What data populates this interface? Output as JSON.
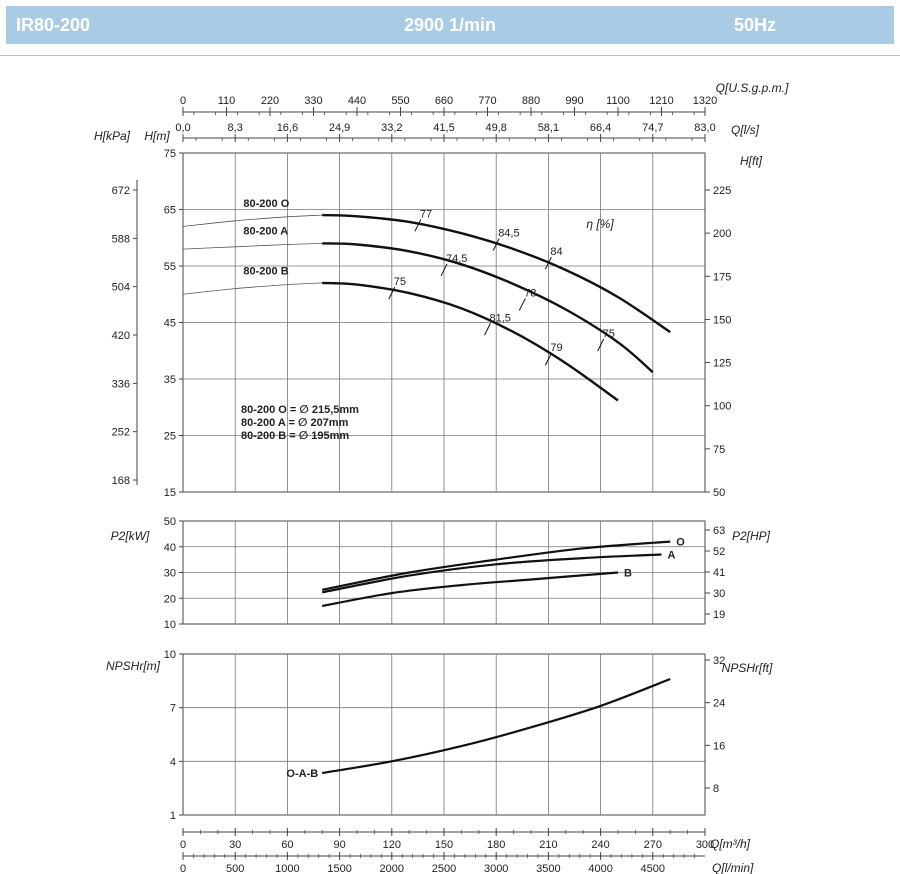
{
  "header": {
    "model": "IR80-200",
    "speed": "2900 1/min",
    "frequency": "50Hz"
  },
  "chart_data": [
    {
      "type": "line",
      "id": "head",
      "xlim": [
        0,
        300
      ],
      "ylim": [
        15,
        75
      ],
      "y_ticks": [
        15,
        25,
        35,
        45,
        55,
        65,
        75
      ],
      "ylabel": "H[m]",
      "ylabel_left2": "H[kPa]",
      "y2_ticks": [
        168,
        252,
        336,
        420,
        504,
        588,
        672
      ],
      "ylabel_right": "H[ft]",
      "yr_ticks": [
        50,
        75,
        100,
        125,
        150,
        175,
        200,
        225
      ],
      "top_axis_1": {
        "label": "Q[U.S.g.p.m.]",
        "ticks": [
          "0",
          "110",
          "220",
          "330",
          "440",
          "550",
          "660",
          "770",
          "880",
          "990",
          "1100",
          "1210",
          "1320"
        ]
      },
      "top_axis_2": {
        "label": "Q[l/s]",
        "ticks": [
          "0,0",
          "8,3",
          "16,6",
          "24,9",
          "33,2",
          "41,5",
          "49,8",
          "58,1",
          "66,4",
          "74,7",
          "83,0"
        ]
      },
      "efficiency_label": "η [%]",
      "series": [
        {
          "name": "80-200 O",
          "x": [
            80,
            100,
            130,
            160,
            190,
            220,
            250,
            280
          ],
          "y": [
            64,
            63.8,
            62.8,
            60.8,
            58,
            54.3,
            49.5,
            43.3
          ],
          "extension": {
            "x": [
              0,
              30,
              60,
              80
            ],
            "y": [
              62.0,
              63.0,
              63.7,
              64.0
            ]
          }
        },
        {
          "name": "80-200 A",
          "x": [
            80,
            100,
            130,
            160,
            190,
            220,
            250,
            270
          ],
          "y": [
            59,
            58.8,
            57.6,
            55.3,
            51.8,
            47.3,
            41.5,
            36.2
          ],
          "extension": {
            "x": [
              0,
              30,
              60,
              80
            ],
            "y": [
              58.0,
              58.4,
              58.8,
              59.0
            ]
          }
        },
        {
          "name": "80-200 B",
          "x": [
            80,
            100,
            130,
            160,
            190,
            220,
            250
          ],
          "y": [
            52,
            51.7,
            50.2,
            47.5,
            43.3,
            37.8,
            31.2
          ],
          "extension": {
            "x": [
              0,
              30,
              60,
              80
            ],
            "y": [
              50.0,
              51.0,
              51.7,
              52.0
            ]
          }
        }
      ],
      "efficiency_marks": [
        {
          "label": "77",
          "x": 135,
          "y": 62.2
        },
        {
          "label": "84,5",
          "x": 180,
          "y": 58.8
        },
        {
          "label": "84",
          "x": 210,
          "y": 55.5
        },
        {
          "label": "74,5",
          "x": 150,
          "y": 54.3
        },
        {
          "label": "78",
          "x": 195,
          "y": 48.2
        },
        {
          "label": "75",
          "x": 240,
          "y": 41.0
        },
        {
          "label": "75",
          "x": 120,
          "y": 50.2
        },
        {
          "label": "81,5",
          "x": 175,
          "y": 43.8
        },
        {
          "label": "79",
          "x": 210,
          "y": 38.5
        }
      ],
      "impeller_legend": [
        "80-200 O = ∅ 215,5mm",
        "80-200 A = ∅ 207mm",
        "80-200 B = ∅ 195mm"
      ]
    },
    {
      "type": "line",
      "id": "power",
      "xlim": [
        0,
        300
      ],
      "ylim": [
        10,
        50
      ],
      "y_ticks": [
        10,
        20,
        30,
        40,
        50
      ],
      "ylabel": "P2[kW]",
      "ylabel_right": "P2[HP]",
      "yr_ticks": [
        19,
        30,
        41,
        52,
        63
      ],
      "series": [
        {
          "name": "O",
          "x": [
            80,
            130,
            180,
            230,
            280
          ],
          "y": [
            23.3,
            30.0,
            35.0,
            39.4,
            42.0
          ]
        },
        {
          "name": "A",
          "x": [
            80,
            130,
            180,
            230,
            275
          ],
          "y": [
            22.3,
            28.8,
            33.2,
            35.6,
            37.0
          ]
        },
        {
          "name": "B",
          "x": [
            80,
            120,
            160,
            200,
            250
          ],
          "y": [
            17.0,
            22.0,
            25.1,
            27.3,
            30.0
          ]
        }
      ]
    },
    {
      "type": "line",
      "id": "npsh",
      "xlim": [
        0,
        300
      ],
      "ylim": [
        1,
        10
      ],
      "y_ticks": [
        1,
        4,
        7,
        10
      ],
      "ylabel": "NPSHr[m]",
      "ylabel_right": "NPSHr[ft]",
      "yr_ticks": [
        8,
        16,
        24,
        32
      ],
      "series": [
        {
          "name": "O-A-B",
          "x": [
            80,
            120,
            160,
            200,
            240,
            280
          ],
          "y": [
            3.35,
            4.0,
            4.85,
            5.9,
            7.1,
            8.6
          ]
        }
      ],
      "bottom_axis_1": {
        "label": "Q[m³/h]",
        "ticks": [
          "0",
          "30",
          "60",
          "90",
          "120",
          "150",
          "180",
          "210",
          "240",
          "270",
          "300"
        ]
      },
      "bottom_axis_2": {
        "label": "Q[l/min]",
        "ticks": [
          "0",
          "500",
          "1000",
          "1500",
          "2000",
          "2500",
          "3000",
          "3500",
          "4000",
          "4500"
        ]
      }
    }
  ]
}
